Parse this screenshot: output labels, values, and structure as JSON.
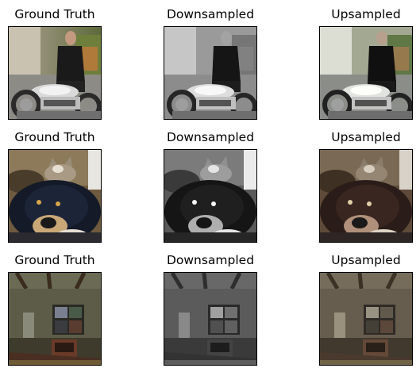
{
  "rows": [
    {
      "scene": "man-with-motorcycle",
      "panels": [
        {
          "title": "Ground Truth",
          "variant": "color"
        },
        {
          "title": "Downsampled",
          "variant": "gray"
        },
        {
          "title": "Upsampled",
          "variant": "upsampled"
        }
      ]
    },
    {
      "scene": "dog-and-cat",
      "panels": [
        {
          "title": "Ground Truth",
          "variant": "color"
        },
        {
          "title": "Downsampled",
          "variant": "gray"
        },
        {
          "title": "Upsampled",
          "variant": "upsampled"
        }
      ]
    },
    {
      "scene": "dim-room-with-window",
      "panels": [
        {
          "title": "Ground Truth",
          "variant": "color"
        },
        {
          "title": "Downsampled",
          "variant": "gray"
        },
        {
          "title": "Upsampled",
          "variant": "upsampled"
        }
      ]
    }
  ]
}
